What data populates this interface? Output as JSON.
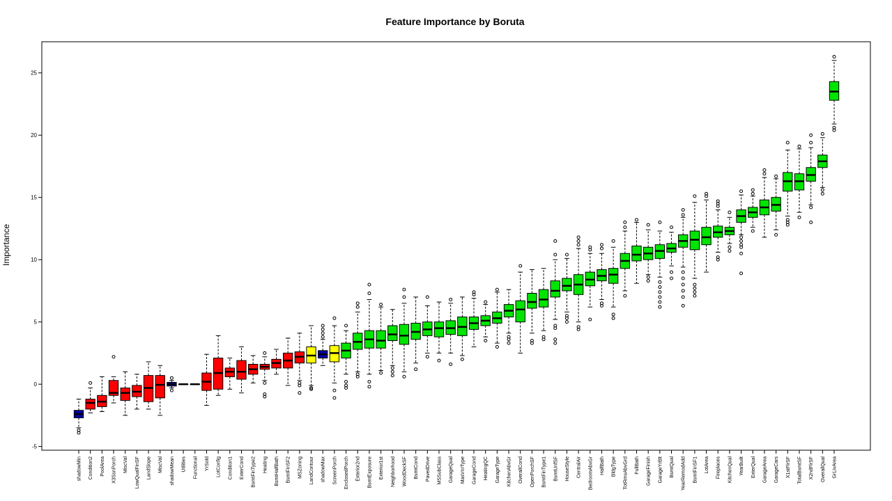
{
  "chart_data": {
    "type": "boxplot",
    "title": "Feature Importance by Boruta",
    "xlabel": "",
    "ylabel": "Importance",
    "ylim": [
      -5.3,
      27.5
    ],
    "yticks": [
      -5,
      0,
      5,
      10,
      15,
      20,
      25
    ],
    "grid": false,
    "legend": "none",
    "colors": {
      "Confirmed": "#00e400",
      "Tentative": "#ffff00",
      "Rejected": "#ff0000",
      "Shadow": "#0000a8"
    },
    "features": [
      {
        "name": "shadowMin",
        "status": "Shadow",
        "min": -3.5,
        "q1": -2.7,
        "median": -2.4,
        "q3": -2.1,
        "max": -1.2,
        "outliers": [
          -3.7,
          -3.9
        ]
      },
      {
        "name": "Condition2",
        "status": "Rejected",
        "min": -2.3,
        "q1": -2.0,
        "median": -1.5,
        "q3": -1.2,
        "max": -0.3,
        "outliers": [
          0.1
        ]
      },
      {
        "name": "PoolArea",
        "status": "Rejected",
        "min": -2.2,
        "q1": -1.8,
        "median": -1.4,
        "q3": -0.9,
        "max": 0.6,
        "outliers": []
      },
      {
        "name": "X3SsnPorch",
        "status": "Rejected",
        "min": -1.5,
        "q1": -0.9,
        "median": -0.7,
        "q3": 0.3,
        "max": 0.6,
        "outliers": [
          2.2
        ]
      },
      {
        "name": "MiscVal",
        "status": "Rejected",
        "min": -2.5,
        "q1": -1.3,
        "median": -0.7,
        "q3": -0.3,
        "max": 1.0,
        "outliers": []
      },
      {
        "name": "LowQualFinSF",
        "status": "Rejected",
        "min": -2.0,
        "q1": -1.0,
        "median": -0.6,
        "q3": -0.1,
        "max": 0.8,
        "outliers": []
      },
      {
        "name": "LandSlope",
        "status": "Rejected",
        "min": -2.0,
        "q1": -1.4,
        "median": -0.3,
        "q3": 0.7,
        "max": 1.8,
        "outliers": []
      },
      {
        "name": "MiscVal",
        "status": "Rejected",
        "min": -2.5,
        "q1": -1.1,
        "median": -0.05,
        "q3": 0.7,
        "max": 1.5,
        "outliers": []
      },
      {
        "name": "shadowMean",
        "status": "Shadow",
        "min": -0.3,
        "q1": -0.15,
        "median": 0.0,
        "q3": 0.15,
        "max": 0.3,
        "outliers": [
          0.5,
          -0.5
        ]
      },
      {
        "name": "Utilities",
        "status": "Rejected",
        "min": 0.0,
        "q1": 0.0,
        "median": 0.0,
        "q3": 0.0,
        "max": 0.0,
        "outliers": []
      },
      {
        "name": "Functional",
        "status": "Rejected",
        "min": 0.0,
        "q1": 0.0,
        "median": 0.0,
        "q3": 0.0,
        "max": 0.0,
        "outliers": []
      },
      {
        "name": "YrSold",
        "status": "Rejected",
        "min": -1.7,
        "q1": -0.5,
        "median": 0.2,
        "q3": 0.9,
        "max": 2.4,
        "outliers": []
      },
      {
        "name": "LotConfig",
        "status": "Rejected",
        "min": -0.9,
        "q1": -0.4,
        "median": 0.9,
        "q3": 2.1,
        "max": 3.9,
        "outliers": []
      },
      {
        "name": "Condition1",
        "status": "Rejected",
        "min": -0.4,
        "q1": 0.6,
        "median": 1.0,
        "q3": 1.3,
        "max": 2.1,
        "outliers": []
      },
      {
        "name": "ExterCond",
        "status": "Rejected",
        "min": -0.7,
        "q1": 0.4,
        "median": 1.0,
        "q3": 1.9,
        "max": 3.0,
        "outliers": []
      },
      {
        "name": "BsmtFinType2",
        "status": "Rejected",
        "min": 0.1,
        "q1": 0.8,
        "median": 1.2,
        "q3": 1.6,
        "max": 2.3,
        "outliers": []
      },
      {
        "name": "Heating",
        "status": "Rejected",
        "min": 0.3,
        "q1": 1.2,
        "median": 1.4,
        "q3": 1.6,
        "max": 2.2,
        "outliers": [
          0.1,
          -0.8,
          -1.0,
          2.5
        ]
      },
      {
        "name": "BsmtHalfBath",
        "status": "Rejected",
        "min": 0.8,
        "q1": 1.3,
        "median": 1.7,
        "q3": 2.0,
        "max": 2.8,
        "outliers": []
      },
      {
        "name": "BsmtFinSF2",
        "status": "Rejected",
        "min": -0.1,
        "q1": 1.3,
        "median": 1.9,
        "q3": 2.5,
        "max": 3.7,
        "outliers": []
      },
      {
        "name": "MSZoning",
        "status": "Rejected",
        "min": 0.3,
        "q1": 1.7,
        "median": 2.2,
        "q3": 2.6,
        "max": 4.1,
        "outliers": [
          0.1,
          -0.1,
          -0.7
        ]
      },
      {
        "name": "LandContour",
        "status": "Tentative",
        "min": -0.1,
        "q1": 1.7,
        "median": 2.3,
        "q3": 3.0,
        "max": 4.7,
        "outliers": [
          -0.3,
          -0.4
        ]
      },
      {
        "name": "shadowMax",
        "status": "Shadow",
        "min": 1.5,
        "q1": 2.1,
        "median": 2.4,
        "q3": 2.7,
        "max": 3.6,
        "outliers": [
          3.8,
          4.1,
          4.4,
          4.7
        ]
      },
      {
        "name": "ScreenPorch",
        "status": "Tentative",
        "min": 0.1,
        "q1": 1.8,
        "median": 2.5,
        "q3": 3.1,
        "max": 4.7,
        "outliers": [
          -0.5,
          -1.1,
          5.3
        ]
      },
      {
        "name": "EnclosedPorch",
        "status": "Confirmed",
        "min": 0.8,
        "q1": 2.1,
        "median": 2.7,
        "q3": 3.3,
        "max": 4.3,
        "outliers": [
          0.2,
          -0.1,
          -0.3,
          4.7
        ]
      },
      {
        "name": "Exterior2nd",
        "status": "Confirmed",
        "min": 1.0,
        "q1": 2.8,
        "median": 3.4,
        "q3": 4.1,
        "max": 5.8,
        "outliers": [
          0.8,
          0.6,
          6.2,
          6.5
        ]
      },
      {
        "name": "BsmtExposure",
        "status": "Confirmed",
        "min": 0.8,
        "q1": 2.9,
        "median": 3.6,
        "q3": 4.3,
        "max": 6.8,
        "outliers": [
          0.2,
          -0.2,
          7.3,
          8.0
        ]
      },
      {
        "name": "Exterior1st",
        "status": "Confirmed",
        "min": 1.1,
        "q1": 2.9,
        "median": 3.5,
        "q3": 4.3,
        "max": 6.2,
        "outliers": [
          0.9,
          6.4
        ]
      },
      {
        "name": "Neighborhood",
        "status": "Confirmed",
        "min": 1.5,
        "q1": 3.5,
        "median": 4.0,
        "q3": 4.7,
        "max": 6.0,
        "outliers": [
          0.7,
          1.0,
          1.3
        ]
      },
      {
        "name": "WoodDeckSF",
        "status": "Confirmed",
        "min": 1.0,
        "q1": 3.2,
        "median": 3.9,
        "q3": 4.8,
        "max": 6.5,
        "outliers": [
          0.6,
          7.0,
          7.6
        ]
      },
      {
        "name": "BsmtCond",
        "status": "Confirmed",
        "min": 1.7,
        "q1": 3.6,
        "median": 4.2,
        "q3": 4.9,
        "max": 7.0,
        "outliers": [
          1.2
        ]
      },
      {
        "name": "PavedDrive",
        "status": "Confirmed",
        "min": 2.5,
        "q1": 3.9,
        "median": 4.4,
        "q3": 5.0,
        "max": 6.3,
        "outliers": [
          2.2,
          7.0
        ]
      },
      {
        "name": "MSSubClass",
        "status": "Confirmed",
        "min": 2.5,
        "q1": 3.8,
        "median": 4.5,
        "q3": 5.0,
        "max": 6.6,
        "outliers": [
          1.9
        ]
      },
      {
        "name": "GarageQual",
        "status": "Confirmed",
        "min": 2.5,
        "q1": 4.0,
        "median": 4.5,
        "q3": 5.1,
        "max": 6.5,
        "outliers": [
          1.6,
          6.8
        ]
      },
      {
        "name": "MasVnrType",
        "status": "Confirmed",
        "min": 2.3,
        "q1": 3.9,
        "median": 4.6,
        "q3": 5.4,
        "max": 7.0,
        "outliers": [
          2.0
        ]
      },
      {
        "name": "GarageCond",
        "status": "Confirmed",
        "min": 3.0,
        "q1": 4.4,
        "median": 4.9,
        "q3": 5.4,
        "max": 6.9,
        "outliers": [
          7.2,
          7.4
        ]
      },
      {
        "name": "HeatingQC",
        "status": "Confirmed",
        "min": 3.8,
        "q1": 4.7,
        "median": 5.1,
        "q3": 5.5,
        "max": 6.4,
        "outliers": [
          3.5,
          6.6
        ]
      },
      {
        "name": "GarageType",
        "status": "Confirmed",
        "min": 3.3,
        "q1": 4.9,
        "median": 5.3,
        "q3": 5.8,
        "max": 7.4,
        "outliers": [
          3.0,
          7.6
        ]
      },
      {
        "name": "KitchenAbvGr",
        "status": "Confirmed",
        "min": 4.1,
        "q1": 5.4,
        "median": 5.9,
        "q3": 6.4,
        "max": 7.6,
        "outliers": [
          3.3,
          3.6,
          3.8
        ]
      },
      {
        "name": "OverallCond",
        "status": "Confirmed",
        "min": 2.5,
        "q1": 5.0,
        "median": 6.0,
        "q3": 6.7,
        "max": 9.0,
        "outliers": [
          9.5
        ]
      },
      {
        "name": "OpenPorchSF",
        "status": "Confirmed",
        "min": 4.1,
        "q1": 6.1,
        "median": 6.6,
        "q3": 7.3,
        "max": 9.2,
        "outliers": [
          3.5,
          3.3
        ]
      },
      {
        "name": "BsmtFinType1",
        "status": "Confirmed",
        "min": 4.3,
        "q1": 6.2,
        "median": 6.8,
        "q3": 7.6,
        "max": 9.3,
        "outliers": [
          3.8,
          3.6
        ]
      },
      {
        "name": "BsmtUnfSF",
        "status": "Confirmed",
        "min": 5.2,
        "q1": 7.0,
        "median": 7.5,
        "q3": 8.3,
        "max": 10.0,
        "outliers": [
          4.7,
          4.5,
          3.6,
          3.3,
          10.4,
          11.5
        ]
      },
      {
        "name": "HouseStyle",
        "status": "Confirmed",
        "min": 5.8,
        "q1": 7.5,
        "median": 7.9,
        "q3": 8.5,
        "max": 10.1,
        "outliers": [
          5.5,
          5.3,
          5.0,
          10.4
        ]
      },
      {
        "name": "CentralAir",
        "status": "Confirmed",
        "min": 5.0,
        "q1": 7.2,
        "median": 8.0,
        "q3": 8.8,
        "max": 10.9,
        "outliers": [
          4.6,
          4.4,
          11.2,
          11.5,
          11.8
        ]
      },
      {
        "name": "BedroomAbvGr",
        "status": "Confirmed",
        "min": 6.2,
        "q1": 7.9,
        "median": 8.4,
        "q3": 9.0,
        "max": 10.5,
        "outliers": [
          5.2,
          10.8,
          11.0
        ]
      },
      {
        "name": "HalfBath",
        "status": "Confirmed",
        "min": 6.8,
        "q1": 8.3,
        "median": 8.7,
        "q3": 9.2,
        "max": 10.5,
        "outliers": [
          6.5,
          6.3,
          10.9,
          11.2
        ]
      },
      {
        "name": "BldgType",
        "status": "Confirmed",
        "min": 6.2,
        "q1": 8.1,
        "median": 8.8,
        "q3": 9.3,
        "max": 11.0,
        "outliers": [
          5.6,
          5.3,
          11.5
        ]
      },
      {
        "name": "TotRmsAbvGrd",
        "status": "Confirmed",
        "min": 7.5,
        "q1": 9.3,
        "median": 9.9,
        "q3": 10.5,
        "max": 12.3,
        "outliers": [
          7.1,
          12.6,
          13.0
        ]
      },
      {
        "name": "FullBath",
        "status": "Confirmed",
        "min": 8.1,
        "q1": 9.9,
        "median": 10.4,
        "q3": 11.1,
        "max": 13.0,
        "outliers": [
          13.2
        ]
      },
      {
        "name": "GarageFinish",
        "status": "Confirmed",
        "min": 8.8,
        "q1": 10.0,
        "median": 10.5,
        "q3": 11.0,
        "max": 12.4,
        "outliers": [
          8.6,
          8.3,
          12.8
        ]
      },
      {
        "name": "GarageYrBlt",
        "status": "Confirmed",
        "min": 8.6,
        "q1": 10.1,
        "median": 10.7,
        "q3": 11.2,
        "max": 12.3,
        "outliers": [
          8.2,
          7.8,
          7.4,
          7.0,
          6.6,
          6.2,
          13.0
        ]
      },
      {
        "name": "BsmtQual",
        "status": "Confirmed",
        "min": 9.5,
        "q1": 10.6,
        "median": 10.9,
        "q3": 11.3,
        "max": 12.2,
        "outliers": [
          9.0,
          8.5,
          12.6
        ]
      },
      {
        "name": "YearRemodAdd",
        "status": "Confirmed",
        "min": 9.4,
        "q1": 11.0,
        "median": 11.5,
        "q3": 12.0,
        "max": 13.4,
        "outliers": [
          9.0,
          8.5,
          8.0,
          7.5,
          7.0,
          6.3,
          13.6,
          14.0
        ]
      },
      {
        "name": "BsmtFinSF1",
        "status": "Confirmed",
        "min": 8.5,
        "q1": 10.8,
        "median": 11.6,
        "q3": 12.3,
        "max": 14.6,
        "outliers": [
          8.0,
          7.7,
          7.4,
          7.1,
          15.1
        ]
      },
      {
        "name": "LotArea",
        "status": "Confirmed",
        "min": 9.0,
        "q1": 11.2,
        "median": 11.8,
        "q3": 12.6,
        "max": 14.8,
        "outliers": [
          15.1,
          15.3
        ]
      },
      {
        "name": "Fireplaces",
        "status": "Confirmed",
        "min": 10.6,
        "q1": 11.8,
        "median": 12.2,
        "q3": 12.7,
        "max": 14.0,
        "outliers": [
          10.2,
          10.0,
          14.3,
          14.5,
          14.7
        ]
      },
      {
        "name": "KitchenQual",
        "status": "Confirmed",
        "min": 11.3,
        "q1": 12.0,
        "median": 12.3,
        "q3": 12.6,
        "max": 13.4,
        "outliers": [
          11.0,
          10.7,
          13.8
        ]
      },
      {
        "name": "YearBuilt",
        "status": "Confirmed",
        "min": 12.0,
        "q1": 13.0,
        "median": 13.5,
        "q3": 14.0,
        "max": 15.2,
        "outliers": [
          11.8,
          11.5,
          11.2,
          11.0,
          10.5,
          8.9,
          15.5
        ]
      },
      {
        "name": "ExterQual",
        "status": "Confirmed",
        "min": 12.6,
        "q1": 13.4,
        "median": 13.8,
        "q3": 14.2,
        "max": 15.1,
        "outliers": [
          12.3,
          15.3,
          15.6
        ]
      },
      {
        "name": "GarageArea",
        "status": "Confirmed",
        "min": 11.8,
        "q1": 13.6,
        "median": 14.2,
        "q3": 14.8,
        "max": 16.6,
        "outliers": [
          16.9,
          17.2
        ]
      },
      {
        "name": "GarageCars",
        "status": "Confirmed",
        "min": 12.4,
        "q1": 13.9,
        "median": 14.4,
        "q3": 15.0,
        "max": 16.5,
        "outliers": [
          12.0,
          16.7
        ]
      },
      {
        "name": "X1stFlrSF",
        "status": "Confirmed",
        "min": 13.5,
        "q1": 15.5,
        "median": 16.3,
        "q3": 17.0,
        "max": 18.8,
        "outliers": [
          13.2,
          13.0,
          12.8,
          19.4
        ]
      },
      {
        "name": "TotalBsmtSF",
        "status": "Confirmed",
        "min": 13.8,
        "q1": 15.6,
        "median": 16.3,
        "q3": 16.9,
        "max": 18.9,
        "outliers": [
          13.4,
          19.1
        ]
      },
      {
        "name": "X2ndFlrSF",
        "status": "Confirmed",
        "min": 14.4,
        "q1": 16.3,
        "median": 16.8,
        "q3": 17.4,
        "max": 19.0,
        "outliers": [
          14.2,
          13.0,
          19.4,
          20.0
        ]
      },
      {
        "name": "OverallQual",
        "status": "Confirmed",
        "min": 15.8,
        "q1": 17.4,
        "median": 17.9,
        "q3": 18.4,
        "max": 19.8,
        "outliers": [
          15.6,
          15.3,
          20.1
        ]
      },
      {
        "name": "GrLivArea",
        "status": "Confirmed",
        "min": 20.9,
        "q1": 22.8,
        "median": 23.5,
        "q3": 24.3,
        "max": 26.0,
        "outliers": [
          20.6,
          20.4,
          26.3
        ]
      }
    ]
  }
}
